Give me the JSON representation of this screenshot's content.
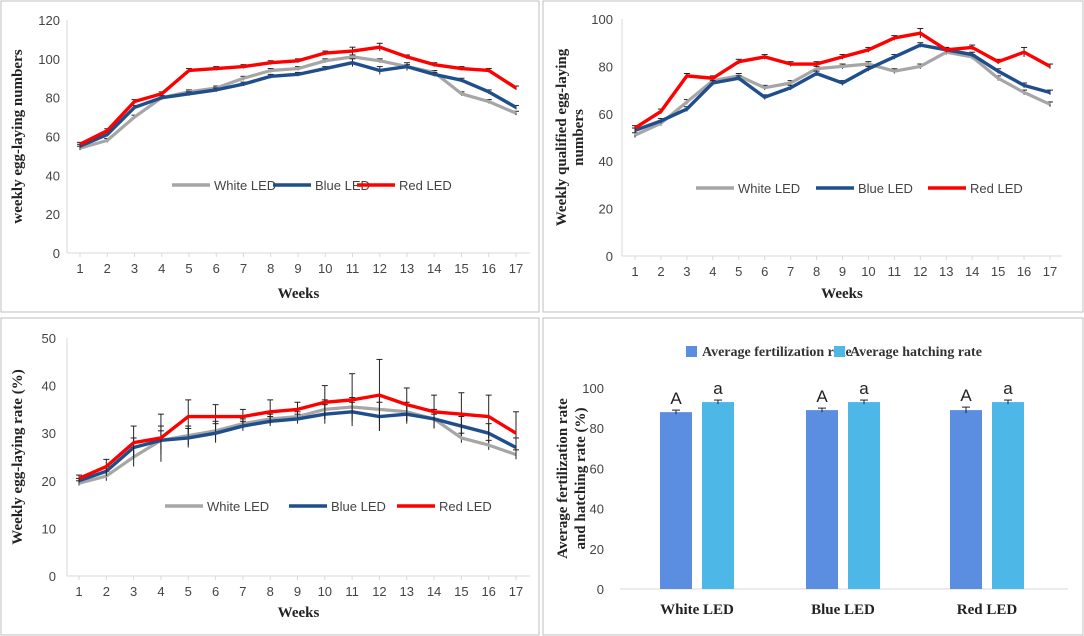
{
  "chart_data": [
    {
      "type": "line",
      "id": "panel-a",
      "xlabel": "Weeks",
      "ylabel": "weekly egg-laying numbers",
      "ylim": [
        0,
        120
      ],
      "yticks": [
        0,
        20,
        40,
        60,
        80,
        100,
        120
      ],
      "categories": [
        "1",
        "2",
        "3",
        "4",
        "5",
        "6",
        "7",
        "8",
        "9",
        "10",
        "11",
        "12",
        "13",
        "14",
        "15",
        "16",
        "17"
      ],
      "error_bars": true,
      "series": [
        {
          "name": "White LED",
          "color": "#a6a6a6",
          "values": [
            54,
            58,
            70,
            80,
            83,
            85,
            90,
            94,
            95,
            99,
            101,
            99,
            96,
            93,
            82,
            78,
            72
          ],
          "errors": [
            1,
            1,
            1,
            1,
            1,
            1,
            1,
            1,
            1,
            1,
            1,
            1,
            1,
            1,
            1,
            1,
            1
          ]
        },
        {
          "name": "Blue LED",
          "color": "#1f4e8c",
          "values": [
            55,
            61,
            75,
            80,
            82,
            84,
            87,
            91,
            92,
            95,
            98,
            94,
            96,
            92,
            89,
            83,
            75
          ],
          "errors": [
            1,
            1,
            1,
            1,
            1,
            1,
            1,
            1,
            1,
            1,
            2,
            2,
            2,
            1,
            1,
            1,
            1
          ]
        },
        {
          "name": "Red LED",
          "color": "#ff0000",
          "values": [
            56,
            63,
            78,
            82,
            94,
            95,
            96,
            98,
            99,
            103,
            104,
            106,
            101,
            97,
            95,
            94,
            85
          ],
          "errors": [
            1,
            1,
            1,
            1,
            1,
            1,
            1,
            1,
            1,
            1,
            2,
            2,
            1,
            1,
            1,
            1,
            1
          ]
        }
      ],
      "legend": [
        "White LED",
        "Blue LED",
        "Red LED"
      ]
    },
    {
      "type": "line",
      "id": "panel-b",
      "xlabel": "Weeks",
      "ylabel_lines": [
        "Weekly qualified egg-laying",
        "numbers"
      ],
      "ylim": [
        0,
        100
      ],
      "yticks": [
        0,
        20,
        40,
        60,
        80,
        100
      ],
      "categories": [
        "1",
        "2",
        "3",
        "4",
        "5",
        "6",
        "7",
        "8",
        "9",
        "10",
        "11",
        "12",
        "13",
        "14",
        "15",
        "16",
        "17"
      ],
      "error_bars": true,
      "series": [
        {
          "name": "White LED",
          "color": "#a6a6a6",
          "values": [
            51,
            56,
            65,
            74,
            76,
            71,
            73,
            79,
            80,
            81,
            78,
            80,
            86,
            84,
            75,
            69,
            64
          ],
          "errors": [
            1,
            1,
            1,
            1,
            1,
            1,
            1,
            1,
            1,
            1,
            1,
            1,
            1,
            1,
            1,
            1,
            1
          ]
        },
        {
          "name": "Blue LED",
          "color": "#1f4e8c",
          "values": [
            53,
            57,
            62,
            73,
            75,
            67,
            71,
            77,
            73,
            79,
            84,
            89,
            87,
            85,
            78,
            72,
            69
          ],
          "errors": [
            1,
            1,
            1,
            1,
            1,
            1,
            1,
            1,
            1,
            1,
            1,
            1,
            1,
            1,
            1,
            1,
            1
          ]
        },
        {
          "name": "Red LED",
          "color": "#ff0000",
          "values": [
            54,
            61,
            76,
            75,
            82,
            84,
            81,
            81,
            84,
            87,
            92,
            94,
            87,
            88,
            82,
            86,
            80
          ],
          "errors": [
            1,
            1,
            1,
            1,
            1,
            1,
            1,
            1,
            1,
            1,
            1,
            2,
            1,
            1,
            1,
            2,
            1
          ]
        }
      ],
      "legend": [
        "White LED",
        "Blue LED",
        "Red LED"
      ]
    },
    {
      "type": "line",
      "id": "panel-c",
      "xlabel": "Weeks",
      "ylabel": "Weekly egg-laying rate (%)",
      "ylim": [
        0,
        50
      ],
      "yticks": [
        0,
        10,
        20,
        30,
        40,
        50
      ],
      "categories": [
        "1",
        "2",
        "3",
        "4",
        "5",
        "6",
        "7",
        "8",
        "9",
        "10",
        "11",
        "12",
        "13",
        "14",
        "15",
        "16",
        "17"
      ],
      "error_bars": true,
      "series": [
        {
          "name": "White LED",
          "color": "#a6a6a6",
          "values": [
            19.5,
            21,
            25,
            28.5,
            29.5,
            30.5,
            32,
            33,
            33.5,
            35,
            35.5,
            35,
            34.5,
            33,
            29,
            27.5,
            25.5
          ],
          "errors": [
            0.5,
            1,
            2,
            2,
            2,
            2,
            1,
            1,
            1,
            2,
            2,
            3,
            2,
            1,
            1,
            1,
            1
          ]
        },
        {
          "name": "Blue LED",
          "color": "#1f4e8c",
          "values": [
            20,
            22,
            27,
            28.5,
            29,
            30,
            31.5,
            32.5,
            33,
            34,
            34.5,
            33.5,
            34,
            33,
            31.5,
            30,
            27
          ],
          "errors": [
            0.5,
            1,
            2,
            3,
            2,
            2,
            1,
            1,
            1,
            2,
            2,
            3,
            2,
            2,
            2,
            2,
            2
          ]
        },
        {
          "name": "Red LED",
          "color": "#ff0000",
          "values": [
            20.5,
            23,
            28,
            29,
            33.5,
            33.5,
            33.5,
            34.5,
            35,
            36.5,
            37,
            38,
            36,
            34.5,
            34,
            33.5,
            30
          ],
          "errors": [
            0.7,
            1.5,
            3.5,
            5,
            3.5,
            2.5,
            1.5,
            2.5,
            1.5,
            3.5,
            5.5,
            7.5,
            3.5,
            3.5,
            4.5,
            4.5,
            4.5
          ]
        }
      ],
      "legend": [
        "White LED",
        "Blue LED",
        "Red LED"
      ]
    },
    {
      "type": "bar",
      "id": "panel-d",
      "ylabel_lines": [
        "Average fertilization rate",
        "and hatching rate (%)"
      ],
      "ylim": [
        0,
        100
      ],
      "yticks": [
        0,
        20,
        40,
        60,
        80,
        100
      ],
      "categories": [
        "White LED",
        "Blue LED",
        "Red LED"
      ],
      "series": [
        {
          "name": "Average fertilization rate",
          "color": "#5b8ee0",
          "values": [
            88,
            89,
            89
          ],
          "errors": [
            1,
            1,
            1.5
          ],
          "labels": [
            "A",
            "A",
            "A"
          ]
        },
        {
          "name": "Average hatching rate",
          "color": "#4db8e8",
          "values": [
            93,
            93,
            93
          ],
          "errors": [
            1,
            1,
            1
          ],
          "labels": [
            "a",
            "a",
            "a"
          ]
        }
      ],
      "legend": [
        "Average fertilization rate",
        "Average hatching rate"
      ]
    }
  ]
}
